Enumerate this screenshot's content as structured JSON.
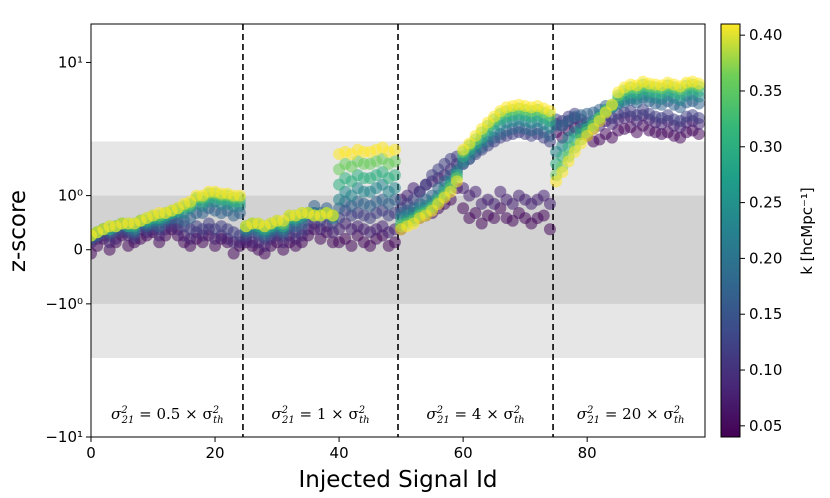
{
  "chart_data": {
    "type": "scatter",
    "xlabel": "Injected Signal Id",
    "ylabel": "z-score",
    "xlim": [
      0,
      99
    ],
    "y_scale": "symlog",
    "ylim": [
      -10,
      17
    ],
    "x_ticks": [
      0,
      20,
      40,
      60,
      80
    ],
    "x_tick_labels": [
      "0",
      "20",
      "40",
      "60",
      "80"
    ],
    "y_ticks": [
      10,
      1,
      0,
      -1,
      -10
    ],
    "y_tick_labels": [
      "10¹",
      "10⁰",
      "0",
      "−10⁰",
      "−10¹"
    ],
    "bands": [
      {
        "ymin": -3,
        "ymax": 3,
        "color": "#e6e6e6"
      },
      {
        "ymin": -1,
        "ymax": 1,
        "color": "#d2d2d2"
      }
    ],
    "vertical_lines_x": [
      24.5,
      49.5,
      74.5
    ],
    "annotations": [
      {
        "pre": "σ",
        "sup": "2",
        "sub": "21",
        "mid": " = 0.5 × σ",
        "sup2": "2",
        "sub2": "th",
        "x": 12.3
      },
      {
        "pre": "σ",
        "sup": "2",
        "sub": "21",
        "mid": " = 1 × σ",
        "sup2": "2",
        "sub2": "th",
        "x": 37
      },
      {
        "pre": "σ",
        "sup": "2",
        "sub": "21",
        "mid": " = 4 × σ",
        "sup2": "2",
        "sub2": "th",
        "x": 62
      },
      {
        "pre": "σ",
        "sup": "2",
        "sub": "21",
        "mid": " = 20 × σ",
        "sup2": "2",
        "sub2": "th",
        "x": 87
      }
    ],
    "colorbar": {
      "label": "k [hcMpc⁻¹]",
      "colormap": "viridis",
      "range": [
        0.04,
        0.41
      ],
      "ticks": [
        0.05,
        0.1,
        0.15,
        0.2,
        0.25,
        0.3,
        0.35,
        0.4
      ],
      "tick_labels": [
        "0.05",
        "0.10",
        "0.15",
        "0.20",
        "0.25",
        "0.30",
        "0.35",
        "0.40"
      ]
    },
    "series_k": [
      0.05,
      0.08,
      0.12,
      0.17,
      0.23,
      0.3,
      0.36,
      0.41
    ],
    "series_values": {
      "0.05": [
        -0.05,
        0.05,
        0.15,
        0.0,
        0.1,
        0.2,
        0.05,
        0.1,
        0.15,
        0.2,
        0.25,
        0.1,
        0.2,
        0.3,
        0.2,
        0.1,
        0.05,
        0.15,
        0.1,
        0.2,
        0.05,
        0.15,
        0.1,
        -0.05,
        0.05,
        0.1,
        0.05,
        0.0,
        -0.05,
        0.05,
        0.1,
        0.0,
        0.1,
        0.05,
        0.1,
        0.2,
        0.3,
        0.15,
        0.25,
        0.1,
        0.1,
        0.15,
        0.05,
        0.2,
        0.1,
        0.05,
        0.15,
        0.2,
        0.05,
        0.1,
        0.3,
        0.45,
        0.6,
        0.5,
        0.55,
        0.6,
        0.7,
        0.8,
        0.9,
        1.2,
        0.7,
        0.5,
        0.6,
        0.4,
        0.55,
        0.5,
        0.7,
        0.5,
        0.45,
        0.6,
        0.5,
        0.4,
        0.5,
        0.55,
        0.3,
        3.5,
        3.2,
        3.6,
        3.8,
        3.4,
        3.3,
        3.0,
        3.1,
        3.4,
        3.2,
        3.6,
        3.7,
        3.8,
        3.5,
        3.9,
        3.6,
        3.5,
        3.4,
        3.5,
        3.3,
        3.2,
        3.5,
        3.6,
        3.4
      ],
      "0.08": [
        0.1,
        0.15,
        0.2,
        0.1,
        0.15,
        0.25,
        0.2,
        0.15,
        0.3,
        0.25,
        0.3,
        0.2,
        0.3,
        0.35,
        0.3,
        0.2,
        0.15,
        0.25,
        0.2,
        0.3,
        0.15,
        0.2,
        0.15,
        0.1,
        0.1,
        0.15,
        0.1,
        0.1,
        0.05,
        0.15,
        0.2,
        0.1,
        0.2,
        0.15,
        0.2,
        0.3,
        0.4,
        0.3,
        0.35,
        0.25,
        0.3,
        0.4,
        0.3,
        0.35,
        0.3,
        0.25,
        0.3,
        0.35,
        0.25,
        0.3,
        0.9,
        1.0,
        1.2,
        1.1,
        1.3,
        1.4,
        1.5,
        1.6,
        1.8,
        2.0,
        1.2,
        1.0,
        1.1,
        0.8,
        0.9,
        0.8,
        1.1,
        0.9,
        0.8,
        1.0,
        0.9,
        0.8,
        0.9,
        1.0,
        0.8,
        4.0,
        3.9,
        4.2,
        4.4,
        4.0,
        3.8,
        3.7,
        3.9,
        4.2,
        4.0,
        4.3,
        4.4,
        4.5,
        4.2,
        4.6,
        4.3,
        4.1,
        4.0,
        4.2,
        3.9,
        3.8,
        4.1,
        4.2,
        4.0
      ],
      "0.12": [
        0.15,
        0.2,
        0.25,
        0.2,
        0.25,
        0.3,
        0.25,
        0.2,
        0.35,
        0.3,
        0.35,
        0.3,
        0.4,
        0.45,
        0.4,
        0.35,
        0.3,
        0.35,
        0.3,
        0.4,
        0.3,
        0.35,
        0.3,
        0.25,
        0.2,
        0.2,
        0.25,
        0.2,
        0.15,
        0.2,
        0.25,
        0.2,
        0.3,
        0.25,
        0.3,
        0.45,
        0.6,
        0.45,
        0.55,
        0.4,
        0.5,
        0.65,
        0.55,
        0.6,
        0.55,
        0.5,
        0.6,
        0.65,
        0.55,
        0.6,
        0.7,
        0.8,
        0.9,
        1.1,
        1.3,
        1.6,
        1.8,
        2.0,
        2.2,
        2.3,
        2.0,
        2.2,
        2.4,
        2.6,
        2.8,
        3.0,
        3.2,
        3.3,
        3.4,
        3.5,
        3.4,
        3.3,
        3.4,
        3.2,
        3.0,
        4.3,
        4.2,
        4.5,
        4.7,
        4.3,
        4.1,
        4.0,
        4.2,
        4.6,
        4.4,
        4.7,
        4.8,
        4.9,
        4.6,
        5.0,
        4.7,
        4.5,
        4.4,
        4.6,
        4.3,
        4.2,
        4.5,
        4.6,
        4.4
      ],
      "0.17": [
        0.15,
        0.2,
        0.3,
        0.25,
        0.3,
        0.35,
        0.3,
        0.25,
        0.4,
        0.35,
        0.4,
        0.35,
        0.45,
        0.5,
        0.5,
        0.45,
        0.5,
        0.6,
        0.6,
        0.7,
        0.65,
        0.6,
        0.65,
        0.55,
        0.6,
        0.25,
        0.3,
        0.25,
        0.2,
        0.25,
        0.3,
        0.25,
        0.35,
        0.35,
        0.4,
        0.55,
        0.75,
        0.6,
        0.7,
        0.55,
        0.7,
        0.85,
        0.75,
        0.85,
        0.8,
        0.75,
        0.85,
        0.9,
        0.8,
        0.9,
        0.6,
        0.65,
        0.7,
        0.8,
        0.9,
        1.0,
        1.2,
        1.4,
        1.6,
        1.8,
        2.0,
        2.2,
        2.5,
        2.7,
        3.0,
        3.2,
        3.4,
        3.6,
        3.7,
        3.8,
        3.7,
        3.6,
        3.7,
        3.5,
        3.3,
        3.9,
        3.9,
        4.2,
        4.5,
        4.6,
        4.7,
        4.8,
        5.0,
        5.3,
        5.2,
        5.5,
        5.6,
        5.8,
        5.6,
        6.0,
        5.7,
        5.5,
        5.4,
        5.7,
        5.4,
        5.2,
        5.6,
        5.7,
        5.5
      ],
      "0.23": [
        0.2,
        0.25,
        0.3,
        0.3,
        0.35,
        0.4,
        0.35,
        0.3,
        0.45,
        0.4,
        0.45,
        0.45,
        0.5,
        0.6,
        0.6,
        0.6,
        0.7,
        0.8,
        0.75,
        0.85,
        0.85,
        0.8,
        0.8,
        0.75,
        0.75,
        0.3,
        0.35,
        0.3,
        0.25,
        0.3,
        0.35,
        0.3,
        0.45,
        0.45,
        0.5,
        0.6,
        0.6,
        0.55,
        0.6,
        0.5,
        0.9,
        1.1,
        1.0,
        1.2,
        1.1,
        1.1,
        1.2,
        1.3,
        1.1,
        1.2,
        0.5,
        0.55,
        0.6,
        0.7,
        0.75,
        0.85,
        1.0,
        1.2,
        1.4,
        1.7,
        2.1,
        2.4,
        2.7,
        3.0,
        3.3,
        3.6,
        3.9,
        4.1,
        4.2,
        4.3,
        4.2,
        4.1,
        4.2,
        4.0,
        3.8,
        2.5,
        2.8,
        3.2,
        3.5,
        3.7,
        3.9,
        4.2,
        4.6,
        5.0,
        5.2,
        5.5,
        5.8,
        6.0,
        5.9,
        6.3,
        6.1,
        6.0,
        5.9,
        6.2,
        6.0,
        5.8,
        6.2,
        6.3,
        6.1
      ],
      "0.30": [
        0.2,
        0.25,
        0.3,
        0.3,
        0.35,
        0.4,
        0.35,
        0.35,
        0.45,
        0.45,
        0.5,
        0.5,
        0.55,
        0.6,
        0.65,
        0.7,
        0.75,
        0.9,
        0.85,
        0.95,
        0.95,
        0.9,
        0.9,
        0.85,
        0.85,
        0.35,
        0.4,
        0.35,
        0.3,
        0.35,
        0.4,
        0.35,
        0.5,
        0.5,
        0.55,
        0.6,
        0.55,
        0.55,
        0.6,
        0.55,
        1.3,
        1.5,
        1.4,
        1.6,
        1.5,
        1.5,
        1.6,
        1.7,
        1.5,
        1.6,
        0.4,
        0.45,
        0.5,
        0.6,
        0.65,
        0.75,
        0.9,
        1.1,
        1.3,
        1.6,
        2.3,
        2.6,
        2.9,
        3.2,
        3.6,
        4.0,
        4.3,
        4.5,
        4.6,
        4.7,
        4.6,
        4.5,
        4.6,
        4.4,
        4.2,
        2.0,
        2.3,
        2.7,
        3.1,
        3.4,
        3.7,
        4.0,
        4.4,
        4.9,
        5.3,
        5.9,
        6.3,
        6.5,
        6.4,
        6.8,
        6.6,
        6.5,
        6.4,
        6.7,
        6.5,
        6.3,
        6.7,
        6.8,
        6.6
      ],
      "0.36": [
        0.2,
        0.25,
        0.3,
        0.35,
        0.35,
        0.4,
        0.4,
        0.4,
        0.45,
        0.5,
        0.55,
        0.55,
        0.6,
        0.65,
        0.7,
        0.75,
        0.8,
        0.95,
        0.95,
        1.05,
        1.05,
        1.0,
        1.0,
        0.95,
        0.95,
        0.35,
        0.4,
        0.4,
        0.35,
        0.4,
        0.45,
        0.4,
        0.55,
        0.55,
        0.6,
        0.6,
        0.55,
        0.55,
        0.6,
        0.55,
        1.8,
        2.0,
        1.9,
        2.1,
        2.0,
        2.0,
        2.1,
        2.2,
        2.0,
        2.1,
        0.35,
        0.4,
        0.45,
        0.55,
        0.6,
        0.7,
        0.85,
        1.0,
        1.2,
        1.5,
        2.5,
        2.8,
        3.1,
        3.5,
        3.9,
        4.3,
        4.7,
        4.9,
        5.0,
        5.1,
        5.0,
        4.9,
        5.0,
        4.8,
        4.6,
        1.6,
        1.9,
        2.3,
        2.7,
        3.1,
        3.5,
        3.9,
        4.4,
        4.9,
        5.4,
        6.2,
        6.7,
        7.0,
        6.9,
        7.3,
        7.1,
        7.0,
        6.9,
        7.2,
        7.0,
        6.8,
        7.2,
        7.3,
        7.1
      ],
      "0.41": [
        0.2,
        0.25,
        0.3,
        0.35,
        0.35,
        0.4,
        0.4,
        0.4,
        0.45,
        0.5,
        0.55,
        0.6,
        0.6,
        0.65,
        0.7,
        0.8,
        0.85,
        1.0,
        1.0,
        1.1,
        1.1,
        1.05,
        1.05,
        1.0,
        1.0,
        0.35,
        0.4,
        0.4,
        0.35,
        0.4,
        0.45,
        0.45,
        0.55,
        0.55,
        0.6,
        0.6,
        0.55,
        0.55,
        0.6,
        0.55,
        2.4,
        2.5,
        2.4,
        2.6,
        2.5,
        2.5,
        2.6,
        2.7,
        2.5,
        2.6,
        0.3,
        0.35,
        0.4,
        0.5,
        0.55,
        0.65,
        0.8,
        0.95,
        1.1,
        1.4,
        2.6,
        2.9,
        3.3,
        3.7,
        4.1,
        4.5,
        4.9,
        5.2,
        5.3,
        5.4,
        5.3,
        5.2,
        5.3,
        5.1,
        4.9,
        1.4,
        1.7,
        2.1,
        2.5,
        2.9,
        3.3,
        3.7,
        4.2,
        4.8,
        5.4,
        6.5,
        7.0,
        7.3,
        7.2,
        7.6,
        7.4,
        7.3,
        7.2,
        7.5,
        7.3,
        7.1,
        7.5,
        7.6,
        7.4
      ]
    }
  }
}
